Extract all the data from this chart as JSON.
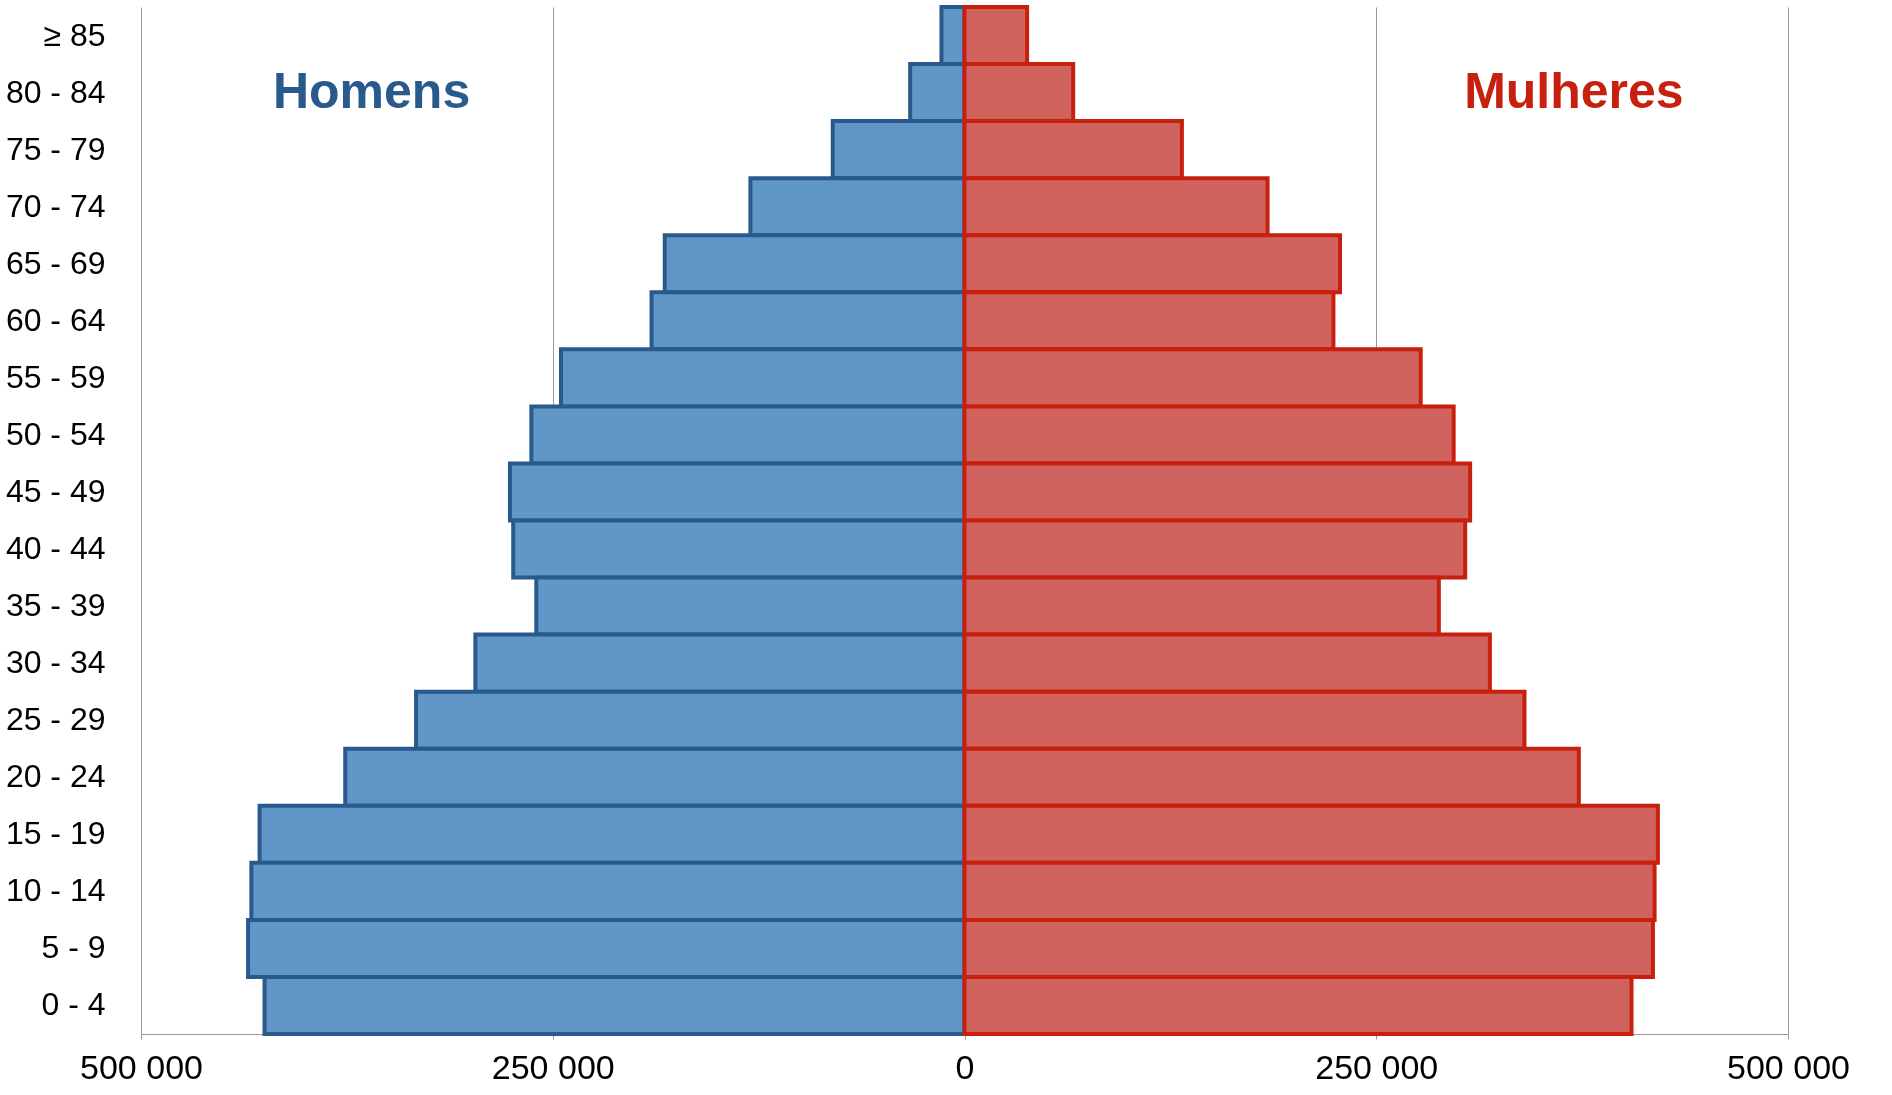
{
  "chart_data": {
    "type": "bar",
    "orientation": "horizontal",
    "stacked": true,
    "categories": [
      "≥ 85",
      "80 - 84",
      "75 - 79",
      "70 - 74",
      "65 - 69",
      "60 - 64",
      "55 - 59",
      "50 - 54",
      "45 - 49",
      "40 - 44",
      "35 - 39",
      "30 - 34",
      "25 - 29",
      "20 - 24",
      "15 - 19",
      "10 - 14",
      "5 - 9",
      "0 - 4"
    ],
    "series": [
      {
        "name": "Homens",
        "color": "#6096c8",
        "values": [
          -14000,
          -33000,
          -80000,
          -130000,
          -182000,
          -190000,
          -245000,
          -263000,
          -276000,
          -274000,
          -260000,
          -297000,
          -333000,
          -376000,
          -428000,
          -433000,
          -435000,
          -425000
        ]
      },
      {
        "name": "Mulheres",
        "color": "#d0635e",
        "values": [
          38000,
          66000,
          132000,
          184000,
          228000,
          224000,
          277000,
          297000,
          307000,
          304000,
          288000,
          319000,
          340000,
          373000,
          421000,
          419000,
          418000,
          405000
        ]
      }
    ],
    "xlim": [
      -500000,
      500000
    ],
    "xticks": [
      {
        "value": -500000,
        "label": "500 000"
      },
      {
        "value": -250000,
        "label": "250 000"
      },
      0,
      {
        "value": 250000,
        "label": "250 000"
      },
      {
        "value": 500000,
        "label": "500 000"
      }
    ],
    "grid": "x"
  }
}
